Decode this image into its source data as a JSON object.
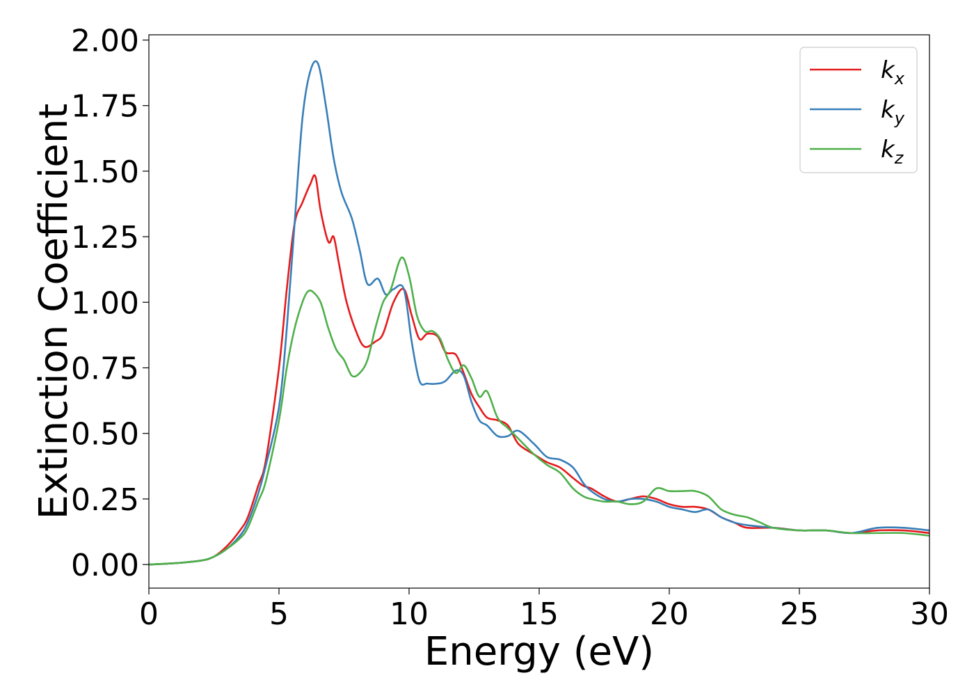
{
  "chart_data": {
    "type": "line",
    "xlabel": "Energy (eV)",
    "ylabel": "Extinction Coefficient",
    "xlim": [
      0,
      30
    ],
    "ylim": [
      -0.09,
      2.02
    ],
    "xticks": [
      0,
      5,
      10,
      15,
      20,
      25,
      30
    ],
    "xtick_labels": [
      "0",
      "5",
      "10",
      "15",
      "20",
      "25",
      "30"
    ],
    "yticks": [
      0,
      0.25,
      0.5,
      0.75,
      1.0,
      1.25,
      1.5,
      1.75,
      2.0
    ],
    "ytick_labels": [
      "0.00",
      "0.25",
      "0.50",
      "0.75",
      "1.00",
      "1.25",
      "1.50",
      "1.75",
      "2.00"
    ],
    "grid": false,
    "legend_position": "top-right",
    "series": [
      {
        "name": "k",
        "subscript": "x",
        "color": "#e41a1c",
        "x": [
          0,
          1,
          2,
          2.5,
          3,
          3.5,
          3.8,
          4.2,
          4.5,
          5,
          5.3,
          5.6,
          5.9,
          6.2,
          6.4,
          6.6,
          6.9,
          7.1,
          7.3,
          7.6,
          8,
          8.3,
          8.7,
          9,
          9.4,
          9.8,
          10.1,
          10.4,
          10.7,
          11.1,
          11.4,
          11.8,
          12.1,
          12.4,
          12.7,
          13,
          13.4,
          13.8,
          14.2,
          14.8,
          15.3,
          15.8,
          16.3,
          16.7,
          17,
          17.5,
          18,
          18.5,
          19,
          19.5,
          20,
          20.5,
          21,
          21.5,
          22,
          22.5,
          23,
          24,
          25,
          26,
          27,
          28,
          29,
          30
        ],
        "y": [
          0,
          0.005,
          0.015,
          0.03,
          0.07,
          0.13,
          0.18,
          0.3,
          0.4,
          0.75,
          1.05,
          1.3,
          1.38,
          1.45,
          1.48,
          1.35,
          1.23,
          1.25,
          1.15,
          1.0,
          0.88,
          0.83,
          0.85,
          0.88,
          1.0,
          1.05,
          0.95,
          0.86,
          0.88,
          0.87,
          0.81,
          0.8,
          0.73,
          0.65,
          0.6,
          0.56,
          0.55,
          0.53,
          0.46,
          0.42,
          0.39,
          0.37,
          0.33,
          0.3,
          0.29,
          0.26,
          0.24,
          0.25,
          0.26,
          0.25,
          0.23,
          0.22,
          0.22,
          0.21,
          0.18,
          0.16,
          0.14,
          0.14,
          0.13,
          0.13,
          0.12,
          0.13,
          0.13,
          0.12
        ]
      },
      {
        "name": "k",
        "subscript": "y",
        "color": "#377eb8",
        "x": [
          0,
          1,
          2,
          2.5,
          3,
          3.5,
          3.8,
          4.2,
          4.5,
          5,
          5.3,
          5.6,
          5.9,
          6.2,
          6.5,
          6.8,
          7.1,
          7.4,
          7.8,
          8.1,
          8.4,
          8.8,
          9.1,
          9.4,
          9.8,
          10.1,
          10.4,
          10.7,
          11.1,
          11.4,
          11.8,
          12.1,
          12.4,
          12.7,
          13,
          13.4,
          13.8,
          14.2,
          14.8,
          15.3,
          15.8,
          16.3,
          16.7,
          17,
          17.5,
          18,
          18.5,
          19,
          19.5,
          20,
          20.5,
          21,
          21.5,
          22,
          22.5,
          23,
          24,
          25,
          26,
          27,
          28,
          29,
          30
        ],
        "y": [
          0,
          0.005,
          0.015,
          0.03,
          0.06,
          0.11,
          0.16,
          0.27,
          0.38,
          0.6,
          0.9,
          1.3,
          1.7,
          1.88,
          1.91,
          1.75,
          1.55,
          1.42,
          1.32,
          1.2,
          1.07,
          1.09,
          1.03,
          1.05,
          1.05,
          0.85,
          0.7,
          0.69,
          0.69,
          0.7,
          0.74,
          0.72,
          0.62,
          0.55,
          0.53,
          0.49,
          0.49,
          0.51,
          0.46,
          0.41,
          0.4,
          0.37,
          0.31,
          0.28,
          0.25,
          0.24,
          0.25,
          0.25,
          0.24,
          0.22,
          0.21,
          0.2,
          0.21,
          0.18,
          0.16,
          0.15,
          0.14,
          0.13,
          0.13,
          0.12,
          0.14,
          0.14,
          0.13
        ]
      },
      {
        "name": "k",
        "subscript": "z",
        "color": "#4daf4a",
        "x": [
          0,
          1,
          2,
          2.5,
          3,
          3.5,
          3.8,
          4.2,
          4.5,
          5,
          5.3,
          5.6,
          5.9,
          6.1,
          6.3,
          6.6,
          6.9,
          7.2,
          7.5,
          7.8,
          8.1,
          8.4,
          8.7,
          9,
          9.3,
          9.7,
          10,
          10.3,
          10.6,
          10.9,
          11.2,
          11.5,
          11.8,
          12.1,
          12.4,
          12.7,
          13,
          13.4,
          13.8,
          14.2,
          14.8,
          15.3,
          15.8,
          16.3,
          16.7,
          17,
          17.5,
          18,
          18.5,
          19,
          19.5,
          20,
          20.5,
          21,
          21.5,
          22,
          22.5,
          23,
          23.5,
          24,
          25,
          26,
          27,
          28,
          29,
          30
        ],
        "y": [
          0,
          0.005,
          0.015,
          0.03,
          0.06,
          0.1,
          0.14,
          0.24,
          0.32,
          0.55,
          0.75,
          0.9,
          1.0,
          1.04,
          1.04,
          1.0,
          0.9,
          0.82,
          0.78,
          0.72,
          0.73,
          0.78,
          0.9,
          1.0,
          1.05,
          1.17,
          1.1,
          0.95,
          0.89,
          0.89,
          0.86,
          0.78,
          0.73,
          0.76,
          0.71,
          0.64,
          0.66,
          0.56,
          0.52,
          0.48,
          0.42,
          0.38,
          0.35,
          0.29,
          0.26,
          0.25,
          0.24,
          0.24,
          0.23,
          0.24,
          0.29,
          0.28,
          0.28,
          0.28,
          0.26,
          0.21,
          0.19,
          0.18,
          0.16,
          0.14,
          0.13,
          0.13,
          0.12,
          0.12,
          0.12,
          0.11
        ]
      }
    ]
  }
}
